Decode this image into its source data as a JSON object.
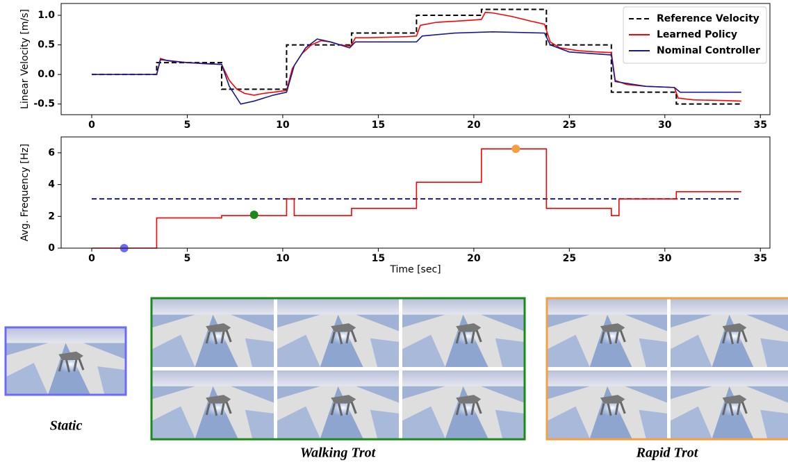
{
  "chart_data": [
    {
      "type": "line",
      "ylabel": "Linear Velocity [m/s]",
      "xlim": [
        -1.6,
        35.5
      ],
      "ylim": [
        -0.68,
        1.2
      ],
      "xticks": [
        0,
        5,
        10,
        15,
        20,
        25,
        30,
        35
      ],
      "yticks": [
        -0.5,
        {
          "value": 0,
          "label": "0.0"
        },
        0.5,
        {
          "value": 1,
          "label": "1.0"
        }
      ],
      "legend": "upper right",
      "series": [
        {
          "name": "Reference Velocity",
          "color": "#000000",
          "dashed": true,
          "x": [
            0,
            3.4,
            3.4,
            6.8,
            6.8,
            10.2,
            10.2,
            13.6,
            13.6,
            17,
            17,
            20.4,
            20.4,
            23.8,
            23.8,
            27.2,
            27.2,
            30.6,
            30.6,
            34
          ],
          "values": [
            0,
            0,
            0.2,
            0.2,
            -0.25,
            -0.25,
            0.5,
            0.5,
            0.7,
            0.7,
            1,
            1,
            1.1,
            1.1,
            0.5,
            0.5,
            -0.3,
            -0.3,
            -0.5,
            -0.5
          ]
        },
        {
          "name": "Learned Policy",
          "color": "#ff0000",
          "x": [
            0,
            3.4,
            3.6,
            4,
            5,
            6,
            6.8,
            7.2,
            7.6,
            8,
            8.5,
            9,
            9.5,
            10.2,
            10.5,
            11,
            11.5,
            12,
            12.5,
            13,
            13.5,
            13.6,
            13.8,
            14.5,
            15.5,
            16.5,
            17,
            17.2,
            18,
            19,
            20,
            20.4,
            20.6,
            21,
            22,
            23,
            23.7,
            24,
            24.5,
            25.5,
            26.5,
            27.2,
            27.4,
            28,
            29,
            30.5,
            30.7,
            31.5,
            33,
            34
          ],
          "values": [
            0,
            0,
            0.27,
            0.23,
            0.2,
            0.18,
            0.17,
            -0.1,
            -0.25,
            -0.32,
            -0.35,
            -0.32,
            -0.3,
            -0.27,
            0.1,
            0.35,
            0.5,
            0.57,
            0.55,
            0.5,
            0.48,
            0.5,
            0.62,
            0.62,
            0.63,
            0.64,
            0.65,
            0.83,
            0.88,
            0.9,
            0.92,
            0.93,
            1.05,
            1.04,
            0.98,
            0.9,
            0.85,
            0.55,
            0.45,
            0.4,
            0.38,
            0.37,
            -0.1,
            -0.17,
            -0.2,
            -0.22,
            -0.4,
            -0.43,
            -0.44,
            -0.45
          ]
        },
        {
          "name": "Nominal Controller",
          "color": "#1a1a8c",
          "x": [
            0,
            3.4,
            3.6,
            5,
            6.8,
            7.2,
            7.8,
            8.5,
            9.5,
            10.2,
            10.6,
            11.2,
            11.8,
            12.5,
            13.5,
            13.8,
            15,
            17,
            17.3,
            19,
            21,
            23.7,
            24,
            25,
            27.2,
            27.4,
            29,
            30.5,
            30.8,
            34
          ],
          "values": [
            0,
            0,
            0.25,
            0.2,
            0.17,
            -0.2,
            -0.5,
            -0.45,
            -0.35,
            -0.3,
            0.15,
            0.45,
            0.6,
            0.55,
            0.45,
            0.55,
            0.55,
            0.55,
            0.65,
            0.7,
            0.72,
            0.7,
            0.5,
            0.38,
            0.33,
            -0.12,
            -0.2,
            -0.22,
            -0.3,
            -0.3
          ]
        }
      ]
    },
    {
      "type": "line",
      "ylabel": "Avg. Frequency [Hz]",
      "xlabel": "Time [sec]",
      "xlim": [
        -1.6,
        35.5
      ],
      "ylim": [
        0,
        7
      ],
      "xticks": [
        0,
        5,
        10,
        15,
        20,
        25,
        30,
        35
      ],
      "yticks": [
        0,
        2,
        4,
        6
      ],
      "series": [
        {
          "color": "#1a1a8c",
          "dashed": true,
          "x": [
            0,
            34
          ],
          "values": [
            3.1,
            3.1
          ]
        },
        {
          "color": "#ff0000",
          "x": [
            0,
            3.4,
            3.4,
            6.8,
            6.8,
            10.2,
            10.2,
            10.6,
            10.6,
            13.6,
            13.6,
            17,
            17,
            20.4,
            20.4,
            23.8,
            23.8,
            27.2,
            27.2,
            27.6,
            27.6,
            30.6,
            30.6,
            34
          ],
          "values": [
            0,
            0,
            1.9,
            1.9,
            2.05,
            2.05,
            3.1,
            3.1,
            2.05,
            2.05,
            2.5,
            2.5,
            4.15,
            4.15,
            6.25,
            6.25,
            2.5,
            2.5,
            2.05,
            2.05,
            3.1,
            3.1,
            3.55,
            3.55
          ]
        }
      ],
      "points": [
        {
          "x": 1.7,
          "y": 0,
          "color": "#6b6bf5"
        },
        {
          "x": 8.5,
          "y": 2.1,
          "color": "#1a8a1a"
        },
        {
          "x": 22.2,
          "y": 6.25,
          "color": "#f5a040"
        }
      ]
    }
  ],
  "panels": [
    {
      "caption": "Static"
    },
    {
      "caption": "Walking Trot"
    },
    {
      "caption": "Rapid Trot"
    }
  ]
}
